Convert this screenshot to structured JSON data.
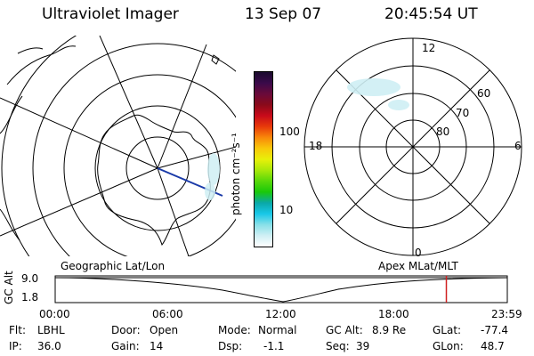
{
  "header": {
    "title": "Ultraviolet Imager",
    "date": "13 Sep 07",
    "time": "20:45:54 UT"
  },
  "geo_map": {
    "label": "Geographic Lat/Lon"
  },
  "apex_map": {
    "label": "Apex MLat/MLT",
    "mlt_labels": {
      "top": "12",
      "left": "18",
      "right": "6",
      "bottom": "0"
    },
    "lat_labels": [
      "60",
      "70",
      "80"
    ]
  },
  "colorbar": {
    "unit_label": "photon cm⁻²s⁻¹",
    "tick_labels": [
      "100",
      "10"
    ],
    "colors": [
      "#1a0a2e",
      "#3a0a4a",
      "#6a0a3a",
      "#8a0a1a",
      "#c80a1a",
      "#e83a0a",
      "#f8880a",
      "#f8c80a",
      "#e8f00a",
      "#a8e80a",
      "#58d80a",
      "#1ac80a",
      "#0aa8a8",
      "#18c8e8",
      "#88e0e8",
      "#cfeff4",
      "#ffffff"
    ]
  },
  "timeline": {
    "y_label": "GC Alt",
    "y_ticks": [
      "9.0",
      "1.8"
    ],
    "x_ticks": [
      "00:00",
      "06:00",
      "12:00",
      "18:00",
      "23:59"
    ],
    "current_time_hours": 20.765
  },
  "info": {
    "filter_label": "Flt:",
    "filter_value": "LBHL",
    "ip_label": "IP:",
    "ip_value": "36.0",
    "door_label": "Door:",
    "door_value": "Open",
    "gain_label": "Gain:",
    "gain_value": "14",
    "mode_label": "Mode:",
    "mode_value": "Normal",
    "dsp_label": "Dsp:",
    "dsp_value": "-1.1",
    "gcalt_label": "GC Alt:",
    "gcalt_value": "8.9 Re",
    "seq_label": "Seq:",
    "seq_value": "39",
    "glat_label": "GLat:",
    "glat_value": "-77.4",
    "glon_label": "GLon:",
    "glon_value": "48.7"
  }
}
